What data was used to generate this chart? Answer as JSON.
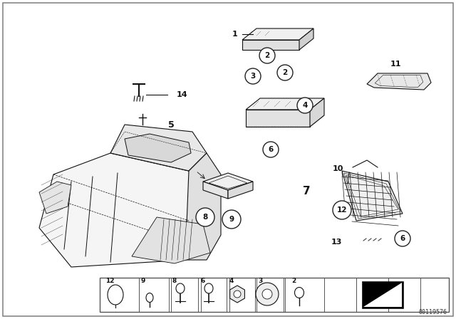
{
  "bg_color": "#ffffff",
  "border_color": "#aaaaaa",
  "drawing_color": "#111111",
  "diagram_id": "00119576",
  "figsize": [
    6.4,
    4.48
  ],
  "dpi": 100
}
